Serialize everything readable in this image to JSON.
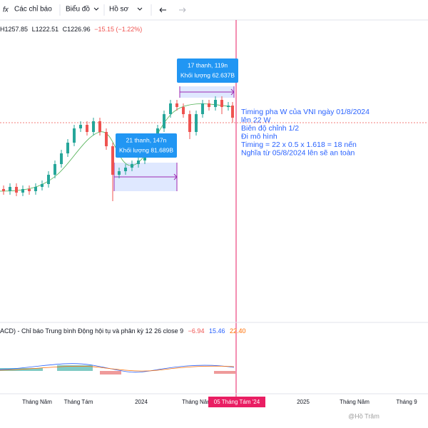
{
  "toolbar": {
    "indicators": "Các chỉ báo",
    "chart": "Biểu đồ",
    "profile": "Hồ sơ"
  },
  "ohlc": {
    "high": "H1257.85",
    "low": "L1222.51",
    "close": "C1226.96",
    "change": "−15.15 (−1.22%)"
  },
  "measure_top": {
    "bars": "17 thanh, 119n",
    "volume": "Khối lượng 62.637B"
  },
  "measure_bottom": {
    "bars": "21 thanh, 147n",
    "volume": "Khối lượng 81.689B"
  },
  "note": [
    "Timing pha W của VNI ngày 01/8/2024",
    "lên 22 W",
    "Biên độ chỉnh 1/2",
    "Đi mô hình",
    "Timing = 22 x 0.5 x 1.618 = 18 nến",
    "Nghĩa từ 05/8/2024 lên sẽ an toàn"
  ],
  "macd": {
    "label": "ACD) - Chỉ báo Trung bình Động hội tụ và phân kỳ 12 26 close 9",
    "hist": "−6.94",
    "macd": "15.46",
    "signal": "22.40"
  },
  "x_axis": [
    "Tháng Năm",
    "Tháng Tám",
    "2024",
    "Tháng Năm",
    "2025",
    "Tháng Năm",
    "Tháng 9"
  ],
  "cursor_date": "05 Tháng Tám '24",
  "watermark": "@Hồ Trâm"
}
